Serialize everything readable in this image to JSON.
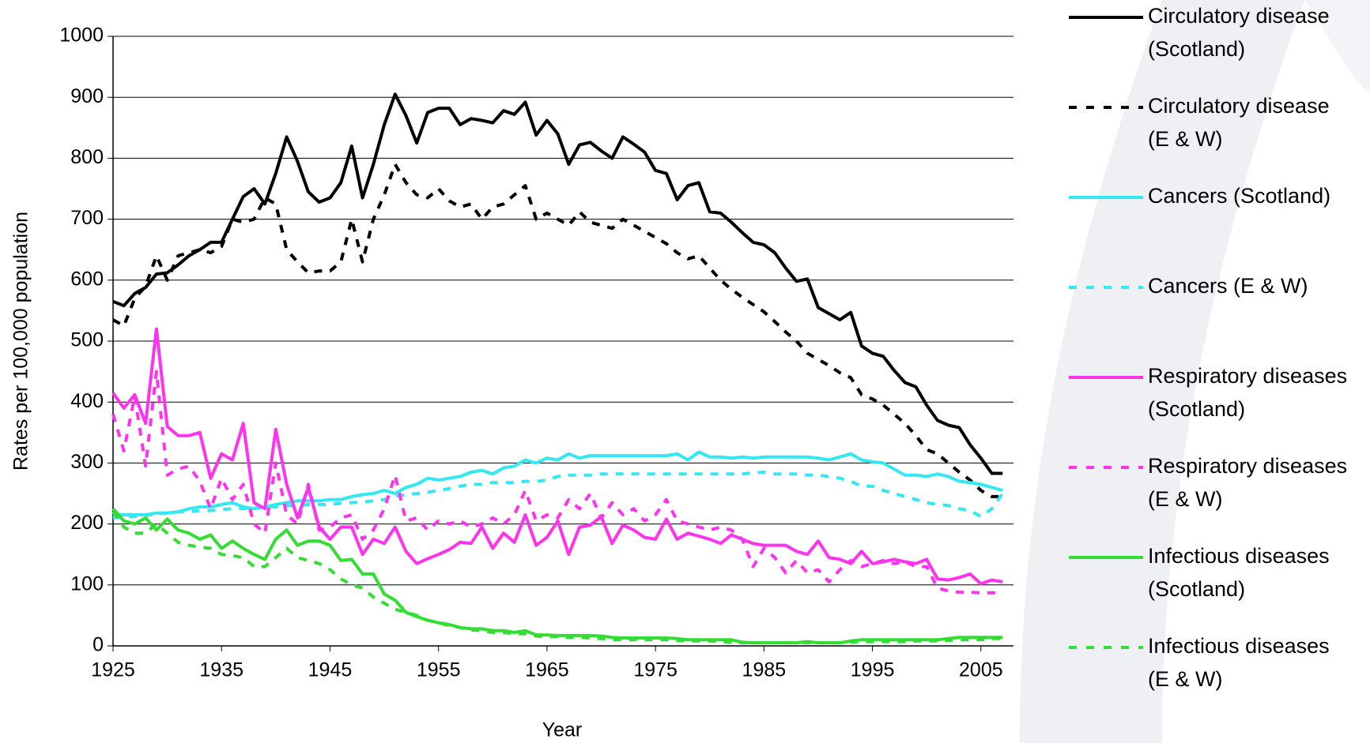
{
  "chart_data": {
    "type": "line",
    "xlabel": "Year",
    "ylabel": "Rates per 100,000 population",
    "x": [
      1925,
      1926,
      1927,
      1928,
      1929,
      1930,
      1931,
      1932,
      1933,
      1934,
      1935,
      1936,
      1937,
      1938,
      1939,
      1940,
      1941,
      1942,
      1943,
      1944,
      1945,
      1946,
      1947,
      1948,
      1949,
      1950,
      1951,
      1952,
      1953,
      1954,
      1955,
      1956,
      1957,
      1958,
      1959,
      1960,
      1961,
      1962,
      1963,
      1964,
      1965,
      1966,
      1967,
      1968,
      1969,
      1970,
      1971,
      1972,
      1973,
      1974,
      1975,
      1976,
      1977,
      1978,
      1979,
      1980,
      1981,
      1982,
      1983,
      1984,
      1985,
      1986,
      1987,
      1988,
      1989,
      1990,
      1991,
      1992,
      1993,
      1994,
      1995,
      1996,
      1997,
      1998,
      1999,
      2000,
      2001,
      2002,
      2003,
      2004,
      2005,
      2006,
      2007
    ],
    "xlim": [
      1925,
      2008
    ],
    "xticks": [
      1925,
      1935,
      1945,
      1955,
      1965,
      1975,
      1985,
      1995,
      2005
    ],
    "ylim": [
      0,
      1000
    ],
    "yticks": [
      0,
      100,
      200,
      300,
      400,
      500,
      600,
      700,
      800,
      900,
      1000
    ],
    "grid": true,
    "legend": "right",
    "series": [
      {
        "name": "Circulatory disease (Scotland)",
        "color": "#000000",
        "dashed": false,
        "values": [
          565,
          558,
          578,
          588,
          610,
          612,
          625,
          640,
          650,
          662,
          662,
          700,
          737,
          750,
          725,
          775,
          835,
          795,
          745,
          728,
          735,
          760,
          820,
          735,
          790,
          855,
          905,
          870,
          825,
          875,
          882,
          882,
          855,
          865,
          862,
          858,
          878,
          872,
          892,
          838,
          862,
          840,
          790,
          822,
          826,
          812,
          800,
          835,
          823,
          810,
          780,
          775,
          732,
          755,
          760,
          712,
          710,
          695,
          678,
          662,
          658,
          645,
          620,
          598,
          602,
          555,
          545,
          535,
          547,
          492,
          480,
          475,
          452,
          432,
          425,
          395,
          370,
          362,
          358,
          330,
          308,
          283,
          283
        ]
      },
      {
        "name": "Circulatory disease (E & W)",
        "color": "#000000",
        "dashed": true,
        "values": [
          535,
          525,
          570,
          590,
          640,
          600,
          640,
          645,
          650,
          645,
          655,
          700,
          695,
          700,
          735,
          725,
          650,
          630,
          612,
          615,
          615,
          630,
          700,
          630,
          700,
          740,
          790,
          760,
          740,
          735,
          750,
          730,
          720,
          725,
          700,
          720,
          725,
          740,
          755,
          700,
          710,
          700,
          690,
          712,
          695,
          690,
          685,
          700,
          690,
          680,
          670,
          660,
          645,
          635,
          640,
          620,
          600,
          585,
          572,
          560,
          548,
          532,
          515,
          500,
          480,
          470,
          460,
          448,
          440,
          412,
          405,
          395,
          380,
          365,
          345,
          322,
          315,
          300,
          285,
          272,
          255,
          245,
          245
        ]
      },
      {
        "name": "Cancers (Scotland)",
        "color": "#33e8f2",
        "dashed": false,
        "values": [
          215,
          215,
          215,
          215,
          218,
          218,
          220,
          225,
          228,
          228,
          232,
          235,
          228,
          225,
          228,
          232,
          235,
          238,
          238,
          238,
          240,
          240,
          245,
          248,
          250,
          255,
          250,
          260,
          265,
          275,
          272,
          275,
          278,
          285,
          288,
          282,
          292,
          295,
          305,
          300,
          308,
          305,
          315,
          308,
          312,
          312,
          312,
          312,
          312,
          312,
          312,
          312,
          315,
          305,
          318,
          310,
          310,
          308,
          310,
          308,
          310,
          310,
          310,
          310,
          310,
          308,
          305,
          310,
          315,
          305,
          302,
          300,
          290,
          280,
          280,
          278,
          282,
          278,
          270,
          268,
          265,
          260,
          255
        ]
      },
      {
        "name": "Cancers (E & W)",
        "color": "#33e8f2",
        "dashed": true,
        "values": [
          210,
          212,
          212,
          214,
          216,
          218,
          220,
          220,
          222,
          222,
          224,
          225,
          225,
          226,
          228,
          228,
          230,
          230,
          232,
          232,
          232,
          234,
          235,
          236,
          238,
          240,
          245,
          248,
          250,
          252,
          255,
          258,
          262,
          265,
          265,
          268,
          268,
          268,
          270,
          270,
          272,
          278,
          280,
          280,
          280,
          282,
          282,
          282,
          282,
          282,
          282,
          282,
          282,
          282,
          282,
          282,
          282,
          282,
          282,
          284,
          285,
          282,
          282,
          282,
          280,
          280,
          278,
          275,
          270,
          262,
          262,
          255,
          250,
          245,
          240,
          235,
          232,
          230,
          225,
          222,
          212,
          225,
          250
        ]
      },
      {
        "name": "Respiratory diseases (Scotland)",
        "color": "#ff33ee",
        "dashed": false,
        "values": [
          415,
          390,
          412,
          365,
          520,
          360,
          345,
          345,
          350,
          275,
          315,
          305,
          365,
          235,
          225,
          355,
          265,
          210,
          260,
          195,
          175,
          195,
          195,
          150,
          175,
          168,
          195,
          155,
          135,
          143,
          150,
          158,
          170,
          168,
          195,
          160,
          185,
          170,
          215,
          165,
          178,
          205,
          150,
          195,
          198,
          212,
          168,
          198,
          190,
          178,
          175,
          208,
          175,
          185,
          180,
          175,
          168,
          182,
          175,
          168,
          165,
          165,
          165,
          155,
          150,
          172,
          145,
          142,
          135,
          155,
          135,
          138,
          142,
          138,
          135,
          142,
          110,
          108,
          112,
          118,
          102,
          108,
          105
        ]
      },
      {
        "name": "Respiratory diseases (E & W)",
        "color": "#ff33ee",
        "dashed": true,
        "values": [
          380,
          320,
          410,
          295,
          450,
          280,
          290,
          295,
          270,
          225,
          275,
          240,
          265,
          200,
          185,
          300,
          215,
          200,
          265,
          190,
          195,
          210,
          215,
          175,
          190,
          225,
          280,
          205,
          210,
          190,
          205,
          200,
          205,
          195,
          200,
          210,
          200,
          215,
          255,
          205,
          215,
          210,
          240,
          225,
          250,
          210,
          235,
          215,
          225,
          205,
          215,
          240,
          205,
          200,
          195,
          190,
          195,
          190,
          175,
          130,
          160,
          145,
          120,
          140,
          120,
          125,
          105,
          125,
          140,
          130,
          135,
          140,
          135,
          138,
          130,
          130,
          95,
          90,
          88,
          88,
          87,
          87,
          87
        ]
      },
      {
        "name": "Infectious diseases (Scotland)",
        "color": "#33dd33",
        "dashed": false,
        "values": [
          225,
          205,
          200,
          210,
          190,
          208,
          190,
          185,
          175,
          182,
          160,
          172,
          160,
          150,
          142,
          175,
          190,
          165,
          172,
          172,
          165,
          140,
          142,
          118,
          118,
          85,
          75,
          55,
          48,
          42,
          38,
          35,
          30,
          28,
          28,
          25,
          25,
          22,
          25,
          18,
          18,
          17,
          17,
          17,
          17,
          16,
          14,
          13,
          13,
          13,
          13,
          13,
          12,
          10,
          10,
          10,
          10,
          10,
          6,
          5,
          5,
          5,
          5,
          5,
          7,
          5,
          5,
          5,
          8,
          10,
          10,
          10,
          10,
          10,
          10,
          10,
          10,
          12,
          14,
          14,
          14,
          14,
          14
        ]
      },
      {
        "name": "Infectious diseases (E & W)",
        "color": "#33dd33",
        "dashed": true,
        "values": [
          220,
          195,
          185,
          185,
          200,
          185,
          170,
          165,
          162,
          160,
          150,
          148,
          145,
          130,
          130,
          145,
          160,
          145,
          140,
          135,
          125,
          110,
          100,
          95,
          80,
          70,
          60,
          55,
          50,
          42,
          38,
          33,
          30,
          26,
          25,
          22,
          22,
          20,
          20,
          16,
          15,
          15,
          14,
          14,
          13,
          12,
          10,
          10,
          10,
          10,
          10,
          10,
          9,
          8,
          8,
          8,
          7,
          6,
          5,
          5,
          5,
          5,
          5,
          5,
          5,
          5,
          5,
          5,
          6,
          7,
          7,
          7,
          7,
          7,
          8,
          8,
          8,
          9,
          10,
          10,
          10,
          12,
          12
        ]
      }
    ]
  }
}
